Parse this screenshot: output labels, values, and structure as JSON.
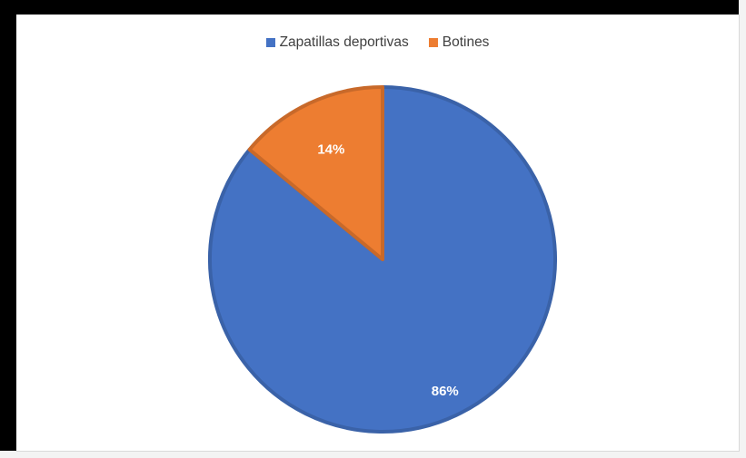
{
  "chart_data": {
    "type": "pie",
    "categories": [
      "Zapatillas deportivas",
      "Botines"
    ],
    "values": [
      86,
      14
    ],
    "data_labels": [
      "86%",
      "14%"
    ],
    "colors": [
      "#4472c4",
      "#ed7d31"
    ],
    "title": "",
    "legend_position": "top"
  }
}
